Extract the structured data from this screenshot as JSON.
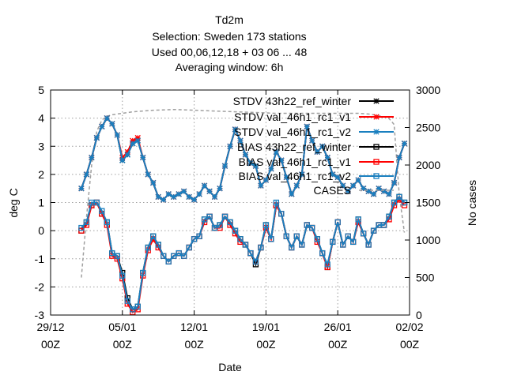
{
  "chart_data": {
    "type": "line",
    "title_lines": [
      "Td2m",
      "Selection: Sweden     173 stations",
      "Used  00,06,12,18  + 03 06 ... 48",
      "Averaging window:  6h"
    ],
    "xlabel": "Date",
    "ylabel": "deg C",
    "y2label": "No cases",
    "x_tick_labels": [
      [
        "29/12",
        "00Z"
      ],
      [
        "05/01",
        "00Z"
      ],
      [
        "12/01",
        "00Z"
      ],
      [
        "19/01",
        "00Z"
      ],
      [
        "26/01",
        "00Z"
      ],
      [
        "02/02",
        "00Z"
      ]
    ],
    "xlim": [
      0,
      35
    ],
    "ylim": [
      -3,
      5
    ],
    "y_ticks": [
      "-3",
      "-2",
      "-1",
      "0",
      "1",
      "2",
      "3",
      "4",
      "5"
    ],
    "y2lim": [
      0,
      3000
    ],
    "y2_ticks": [
      "0",
      "500",
      "1000",
      "1500",
      "2000",
      "2500",
      "3000"
    ],
    "grid": true,
    "legend_position": "top-right",
    "series": [
      {
        "name": "STDV 43h22_ref_winter",
        "color": "#000000",
        "marker": "star",
        "axis": "y",
        "x": [
          3,
          3.5,
          4,
          4.5,
          5,
          5.5,
          6,
          6.5,
          7,
          7.5,
          8,
          8.5,
          9,
          9.5,
          10,
          10.5,
          11,
          11.5,
          12,
          12.5,
          13,
          13.5,
          14,
          14.5,
          15,
          15.5,
          16,
          16.5,
          17,
          17.5,
          18,
          18.5,
          19,
          19.5,
          20,
          20.5,
          21,
          21.5,
          22,
          22.5,
          23,
          23.5,
          24,
          24.5,
          25,
          25.5,
          26,
          26.5,
          27,
          27.5,
          28,
          28.5,
          29,
          29.5,
          30,
          30.5,
          31,
          31.5,
          32,
          32.5,
          33,
          33.5,
          34,
          34.5
        ],
        "values": [
          1.5,
          2.0,
          2.6,
          3.3,
          3.7,
          4.0,
          3.8,
          3.4,
          2.5,
          2.7,
          3.1,
          3.2,
          2.6,
          2.0,
          1.7,
          1.2,
          1.1,
          1.3,
          1.2,
          1.3,
          1.4,
          1.2,
          1.1,
          1.3,
          1.6,
          1.4,
          1.2,
          1.5,
          2.3,
          3.0,
          3.6,
          3.2,
          2.7,
          2.4,
          2.3,
          1.6,
          1.8,
          2.2,
          2.8,
          2.5,
          1.9,
          1.3,
          1.6,
          2.0,
          3.7,
          3.2,
          2.8,
          3.0,
          2.6,
          2.0,
          1.9,
          1.6,
          1.4,
          1.6,
          1.8,
          1.5,
          1.4,
          1.3,
          1.5,
          1.4,
          1.3,
          1.7,
          2.6,
          3.1
        ]
      },
      {
        "name": "STDV val_46h1_rc1_v1",
        "color": "#ff0000",
        "marker": "star",
        "axis": "y",
        "x": [
          3,
          3.5,
          4,
          4.5,
          5,
          5.5,
          6,
          6.5,
          7,
          7.5,
          8,
          8.5,
          9,
          9.5,
          10,
          10.5,
          11,
          11.5,
          12,
          12.5,
          13,
          13.5,
          14,
          14.5,
          15,
          15.5,
          16,
          16.5,
          17,
          17.5,
          18,
          18.5,
          19,
          19.5,
          20,
          20.5,
          21,
          21.5,
          22,
          22.5,
          23,
          23.5,
          24,
          24.5,
          25,
          25.5,
          26,
          26.5,
          27,
          27.5,
          28,
          28.5,
          29,
          29.5,
          30,
          30.5,
          31,
          31.5,
          32,
          32.5,
          33,
          33.5,
          34,
          34.5
        ],
        "values": [
          1.5,
          2.0,
          2.6,
          3.3,
          3.7,
          4.0,
          3.8,
          3.4,
          2.6,
          2.8,
          3.2,
          3.3,
          2.6,
          2.0,
          1.7,
          1.2,
          1.1,
          1.3,
          1.2,
          1.3,
          1.4,
          1.2,
          1.1,
          1.3,
          1.6,
          1.4,
          1.2,
          1.5,
          2.3,
          3.0,
          3.6,
          3.2,
          2.7,
          2.4,
          2.3,
          1.6,
          1.8,
          2.2,
          2.8,
          2.5,
          1.9,
          1.3,
          1.6,
          2.0,
          3.7,
          3.2,
          2.8,
          3.0,
          2.6,
          2.0,
          1.9,
          1.6,
          1.4,
          1.6,
          1.8,
          1.5,
          1.4,
          1.3,
          1.5,
          1.4,
          1.3,
          1.7,
          2.6,
          3.1
        ]
      },
      {
        "name": "STDV val_46h1_rc1_v2",
        "color": "#1a7fbf",
        "marker": "star",
        "axis": "y",
        "x": [
          3,
          3.5,
          4,
          4.5,
          5,
          5.5,
          6,
          6.5,
          7,
          7.5,
          8,
          8.5,
          9,
          9.5,
          10,
          10.5,
          11,
          11.5,
          12,
          12.5,
          13,
          13.5,
          14,
          14.5,
          15,
          15.5,
          16,
          16.5,
          17,
          17.5,
          18,
          18.5,
          19,
          19.5,
          20,
          20.5,
          21,
          21.5,
          22,
          22.5,
          23,
          23.5,
          24,
          24.5,
          25,
          25.5,
          26,
          26.5,
          27,
          27.5,
          28,
          28.5,
          29,
          29.5,
          30,
          30.5,
          31,
          31.5,
          32,
          32.5,
          33,
          33.5,
          34,
          34.5
        ],
        "values": [
          1.5,
          2.0,
          2.6,
          3.3,
          3.7,
          4.0,
          3.8,
          3.4,
          2.5,
          2.7,
          3.1,
          3.2,
          2.6,
          2.0,
          1.7,
          1.2,
          1.1,
          1.3,
          1.2,
          1.3,
          1.4,
          1.2,
          1.1,
          1.3,
          1.6,
          1.4,
          1.2,
          1.5,
          2.3,
          3.0,
          3.6,
          3.2,
          2.7,
          2.4,
          2.3,
          1.6,
          1.8,
          2.2,
          2.8,
          2.5,
          1.9,
          1.3,
          1.6,
          2.0,
          3.7,
          3.2,
          2.8,
          3.0,
          2.6,
          2.0,
          1.9,
          1.6,
          1.4,
          1.6,
          1.8,
          1.5,
          1.4,
          1.3,
          1.5,
          1.4,
          1.3,
          1.7,
          2.6,
          3.1
        ]
      },
      {
        "name": "BIAS 43h22_ref_winter",
        "color": "#000000",
        "marker": "square",
        "axis": "y",
        "x": [
          3,
          3.5,
          4,
          4.5,
          5,
          5.5,
          6,
          6.5,
          7,
          7.5,
          8,
          8.5,
          9,
          9.5,
          10,
          10.5,
          11,
          11.5,
          12,
          12.5,
          13,
          13.5,
          14,
          14.5,
          15,
          15.5,
          16,
          16.5,
          17,
          17.5,
          18,
          18.5,
          19,
          19.5,
          20,
          20.5,
          21,
          21.5,
          22,
          22.5,
          23,
          23.5,
          24,
          24.5,
          25,
          25.5,
          26,
          26.5,
          27,
          27.5,
          28,
          28.5,
          29,
          29.5,
          30,
          30.5,
          31,
          31.5,
          32,
          32.5,
          33,
          33.5,
          34,
          34.5
        ],
        "values": [
          0.0,
          0.3,
          0.9,
          1.0,
          0.6,
          0.3,
          -0.8,
          -0.9,
          -1.5,
          -2.4,
          -2.8,
          -2.7,
          -1.5,
          -0.6,
          -0.2,
          -0.5,
          -0.9,
          -1.1,
          -0.9,
          -0.8,
          -0.9,
          -0.6,
          -0.3,
          -0.2,
          0.4,
          0.5,
          0.1,
          0.2,
          0.5,
          0.3,
          0.0,
          -0.3,
          -0.5,
          -0.8,
          -1.2,
          -0.6,
          0.2,
          -0.3,
          0.9,
          0.6,
          -0.2,
          -0.6,
          -0.2,
          -0.5,
          0.2,
          0.1,
          -0.3,
          -0.8,
          -1.3,
          -0.4,
          0.3,
          -0.5,
          -0.2,
          -0.4,
          0.4,
          -0.1,
          -0.5,
          0.0,
          0.2,
          0.2,
          0.5,
          1.0,
          1.2,
          1.0
        ]
      },
      {
        "name": "BIAS val_46h1_rc1_v1",
        "color": "#ff0000",
        "marker": "square",
        "axis": "y",
        "x": [
          3,
          3.5,
          4,
          4.5,
          5,
          5.5,
          6,
          6.5,
          7,
          7.5,
          8,
          8.5,
          9,
          9.5,
          10,
          10.5,
          11,
          11.5,
          12,
          12.5,
          13,
          13.5,
          14,
          14.5,
          15,
          15.5,
          16,
          16.5,
          17,
          17.5,
          18,
          18.5,
          19,
          19.5,
          20,
          20.5,
          21,
          21.5,
          22,
          22.5,
          23,
          23.5,
          24,
          24.5,
          25,
          25.5,
          26,
          26.5,
          27,
          27.5,
          28,
          28.5,
          29,
          29.5,
          30,
          30.5,
          31,
          31.5,
          32,
          32.5,
          33,
          33.5,
          34,
          34.5
        ],
        "values": [
          0.0,
          0.2,
          0.9,
          1.0,
          0.6,
          0.2,
          -0.9,
          -1.0,
          -1.7,
          -2.6,
          -2.9,
          -2.8,
          -1.6,
          -0.7,
          -0.3,
          -0.6,
          -0.9,
          -1.1,
          -0.9,
          -0.8,
          -0.9,
          -0.6,
          -0.3,
          -0.2,
          0.3,
          0.5,
          0.1,
          0.1,
          0.5,
          0.2,
          -0.1,
          -0.4,
          -0.5,
          -0.8,
          -1.1,
          -0.6,
          0.1,
          -0.3,
          0.9,
          0.6,
          -0.2,
          -0.6,
          -0.2,
          -0.5,
          0.2,
          0.1,
          -0.4,
          -0.8,
          -1.3,
          -0.4,
          0.3,
          -0.5,
          -0.2,
          -0.4,
          0.3,
          -0.1,
          -0.5,
          0.0,
          0.2,
          0.2,
          0.4,
          0.9,
          1.1,
          0.9
        ]
      },
      {
        "name": "BIAS val_46h1_rc1_v2",
        "color": "#1a7fbf",
        "marker": "square",
        "axis": "y",
        "x": [
          3,
          3.5,
          4,
          4.5,
          5,
          5.5,
          6,
          6.5,
          7,
          7.5,
          8,
          8.5,
          9,
          9.5,
          10,
          10.5,
          11,
          11.5,
          12,
          12.5,
          13,
          13.5,
          14,
          14.5,
          15,
          15.5,
          16,
          16.5,
          17,
          17.5,
          18,
          18.5,
          19,
          19.5,
          20,
          20.5,
          21,
          21.5,
          22,
          22.5,
          23,
          23.5,
          24,
          24.5,
          25,
          25.5,
          26,
          26.5,
          27,
          27.5,
          28,
          28.5,
          29,
          29.5,
          30,
          30.5,
          31,
          31.5,
          32,
          32.5,
          33,
          33.5,
          34,
          34.5
        ],
        "values": [
          0.1,
          0.3,
          1.0,
          1.0,
          0.7,
          0.3,
          -0.8,
          -0.9,
          -1.6,
          -2.5,
          -2.8,
          -2.7,
          -1.5,
          -0.6,
          -0.2,
          -0.5,
          -0.9,
          -1.1,
          -0.9,
          -0.8,
          -0.9,
          -0.6,
          -0.3,
          -0.2,
          0.4,
          0.5,
          0.1,
          0.2,
          0.5,
          0.3,
          0.0,
          -0.3,
          -0.5,
          -0.8,
          -1.1,
          -0.6,
          0.2,
          -0.3,
          1.0,
          0.6,
          -0.2,
          -0.6,
          -0.2,
          -0.5,
          0.2,
          0.1,
          -0.3,
          -0.8,
          -1.2,
          -0.4,
          0.3,
          -0.5,
          -0.2,
          -0.4,
          0.4,
          -0.1,
          -0.5,
          0.0,
          0.2,
          0.2,
          0.5,
          1.0,
          1.2,
          1.0
        ]
      },
      {
        "name": "CASES",
        "color": "#a0a0a0",
        "marker": "none",
        "dashed": true,
        "axis": "y2",
        "x": [
          3,
          3.5,
          4,
          4.5,
          5,
          5.5,
          6,
          7,
          8,
          9,
          10,
          12,
          14,
          16,
          18,
          20,
          22,
          24,
          26,
          28,
          30,
          31,
          32,
          33,
          33.5,
          34,
          34.5
        ],
        "values": [
          500,
          1300,
          2000,
          2450,
          2600,
          2650,
          2670,
          2690,
          2710,
          2720,
          2730,
          2740,
          2730,
          2720,
          2710,
          2700,
          2690,
          2690,
          2690,
          2690,
          2690,
          2680,
          2660,
          2620,
          2540,
          1600,
          1100
        ]
      }
    ]
  }
}
